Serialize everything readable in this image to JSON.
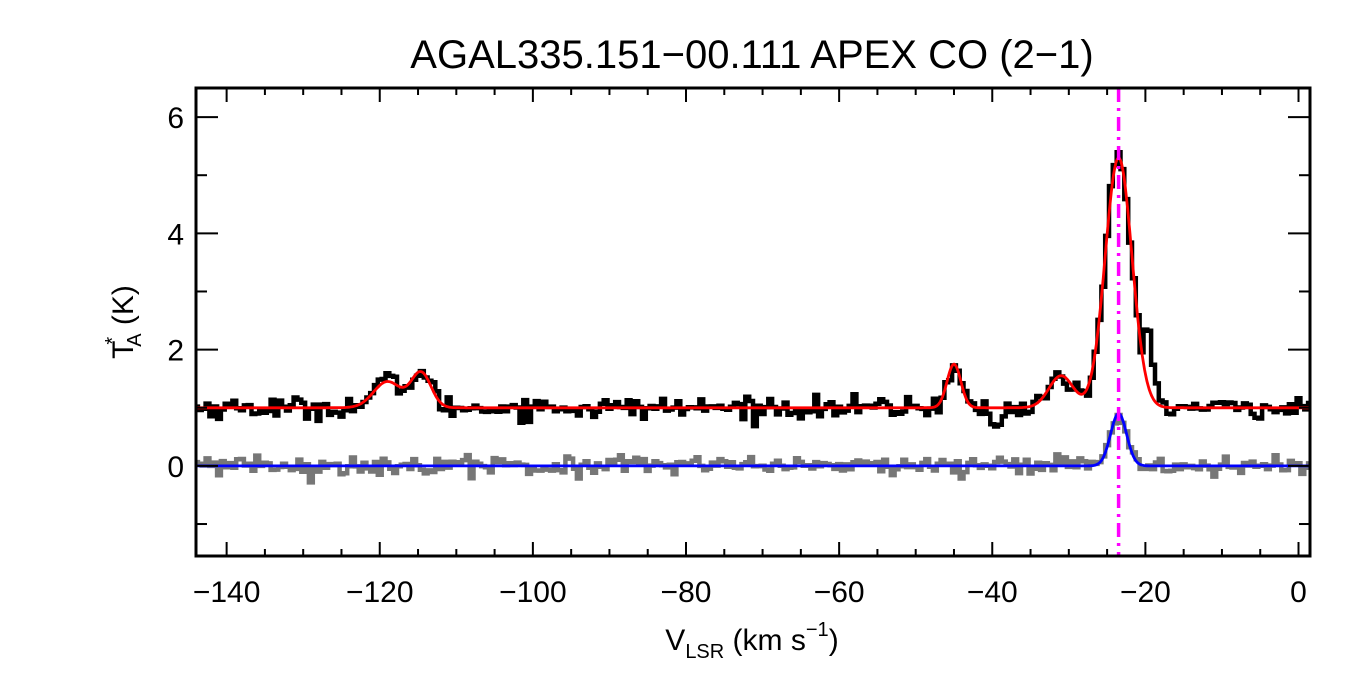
{
  "chart_data": {
    "type": "line",
    "title": "AGAL335.151−00.111  APEX CO (2−1)",
    "xlabel": {
      "main": "V",
      "sub": "LSR",
      "rest": " (km s",
      "sup": "−1",
      "close": ")"
    },
    "ylabel": {
      "main": "T",
      "sup": "*",
      "sub": "A",
      "rest": " (K)"
    },
    "xlim": [
      -144,
      1.5
    ],
    "ylim": [
      -1.55,
      6.5
    ],
    "xticks": [
      -140,
      -120,
      -100,
      -80,
      -60,
      -40,
      -20,
      0
    ],
    "xtick_labels": [
      "−140",
      "−120",
      "−100",
      "−80",
      "−60",
      "−40",
      "−20",
      "0"
    ],
    "yticks": [
      0,
      2,
      4,
      6
    ],
    "ytick_labels": [
      "0",
      "2",
      "4",
      "6"
    ],
    "marker_velocity": -23.5,
    "series": [
      {
        "kind": "observed",
        "style": "step",
        "color": "#000000",
        "offset": 1.0,
        "noise": 0.09,
        "components": [
          {
            "center": -119.0,
            "amplitude": 0.45,
            "sigma": 1.8
          },
          {
            "center": -114.6,
            "amplitude": 0.6,
            "sigma": 1.3
          },
          {
            "center": -45.0,
            "amplitude": 0.75,
            "sigma": 0.9
          },
          {
            "center": -31.0,
            "amplitude": 0.55,
            "sigma": 1.6
          },
          {
            "center": -39.5,
            "amplitude": -0.4,
            "sigma": 0.6
          },
          {
            "center": -23.5,
            "amplitude": 4.3,
            "sigma": 1.7
          },
          {
            "center": -19.5,
            "amplitude": 0.9,
            "sigma": 0.7
          }
        ]
      },
      {
        "kind": "fit",
        "style": "smooth",
        "color": "#ff0000",
        "offset": 1.0,
        "components": [
          {
            "center": -119.0,
            "amplitude": 0.45,
            "sigma": 1.8
          },
          {
            "center": -114.6,
            "amplitude": 0.6,
            "sigma": 1.3
          },
          {
            "center": -45.0,
            "amplitude": 0.75,
            "sigma": 0.9
          },
          {
            "center": -31.0,
            "amplitude": 0.55,
            "sigma": 1.6
          },
          {
            "center": -23.5,
            "amplitude": 4.3,
            "sigma": 1.75
          }
        ]
      },
      {
        "kind": "observed",
        "style": "step",
        "color": "#777777",
        "offset": 0.0,
        "noise": 0.08,
        "components": [
          {
            "center": -23.5,
            "amplitude": 0.9,
            "sigma": 1.1
          }
        ]
      },
      {
        "kind": "fit",
        "style": "smooth",
        "color": "#0000ff",
        "offset": 0.0,
        "components": [
          {
            "center": -23.5,
            "amplitude": 0.9,
            "sigma": 1.05
          }
        ]
      }
    ]
  },
  "colors": {
    "marker": "#ff00ff",
    "axes": "#000000"
  }
}
